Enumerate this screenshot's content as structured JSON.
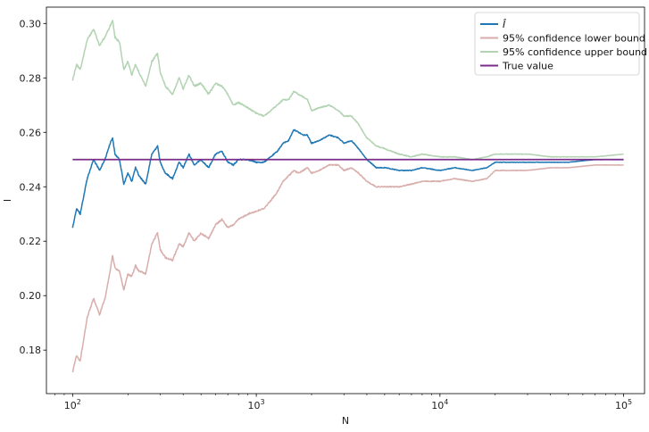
{
  "chart_data": {
    "type": "line",
    "xscale": "log",
    "xlabel": "N",
    "ylabel": "I",
    "xlim": [
      72,
      130000
    ],
    "ylim": [
      0.164,
      0.306
    ],
    "grid": false,
    "legend_position": "top-right",
    "x_ticks": [
      {
        "value": 100,
        "base": "10",
        "exp": "2"
      },
      {
        "value": 1000,
        "base": "10",
        "exp": "3"
      },
      {
        "value": 10000,
        "base": "10",
        "exp": "4"
      },
      {
        "value": 100000,
        "base": "10",
        "exp": "5"
      }
    ],
    "y_ticks": [
      {
        "value": 0.18,
        "label": "0.18"
      },
      {
        "value": 0.2,
        "label": "0.20"
      },
      {
        "value": 0.22,
        "label": "0.22"
      },
      {
        "value": 0.24,
        "label": "0.24"
      },
      {
        "value": 0.26,
        "label": "0.26"
      },
      {
        "value": 0.28,
        "label": "0.28"
      },
      {
        "value": 0.3,
        "label": "0.30"
      }
    ],
    "series": [
      {
        "name": "Î",
        "color": "#1f77b4",
        "x": [
          100,
          105,
          110,
          120,
          130,
          140,
          150,
          160,
          165,
          170,
          180,
          190,
          200,
          210,
          220,
          230,
          250,
          270,
          290,
          300,
          320,
          350,
          380,
          400,
          430,
          460,
          500,
          550,
          600,
          650,
          700,
          750,
          800,
          900,
          1000,
          1100,
          1200,
          1300,
          1400,
          1500,
          1600,
          1700,
          1800,
          1900,
          2000,
          2200,
          2500,
          2800,
          3000,
          3300,
          3600,
          4000,
          4500,
          5000,
          6000,
          7000,
          8000,
          10000,
          12000,
          15000,
          18000,
          20000,
          22000,
          25000,
          30000,
          40000,
          50000,
          70000,
          100000
        ],
        "y": [
          0.225,
          0.232,
          0.23,
          0.243,
          0.25,
          0.246,
          0.25,
          0.256,
          0.258,
          0.252,
          0.25,
          0.241,
          0.245,
          0.242,
          0.247,
          0.244,
          0.241,
          0.252,
          0.255,
          0.249,
          0.245,
          0.243,
          0.249,
          0.247,
          0.252,
          0.248,
          0.25,
          0.247,
          0.252,
          0.253,
          0.249,
          0.248,
          0.25,
          0.25,
          0.249,
          0.249,
          0.251,
          0.253,
          0.256,
          0.257,
          0.261,
          0.26,
          0.259,
          0.259,
          0.256,
          0.257,
          0.259,
          0.258,
          0.256,
          0.257,
          0.254,
          0.25,
          0.247,
          0.247,
          0.246,
          0.246,
          0.247,
          0.246,
          0.247,
          0.246,
          0.247,
          0.249,
          0.249,
          0.249,
          0.249,
          0.249,
          0.249,
          0.25,
          0.25
        ]
      },
      {
        "name": "95% confidence lower bound",
        "color": "#d8aeab",
        "x": [
          100,
          105,
          110,
          120,
          130,
          140,
          150,
          160,
          165,
          170,
          180,
          190,
          200,
          210,
          220,
          230,
          250,
          270,
          290,
          300,
          320,
          350,
          380,
          400,
          430,
          460,
          500,
          550,
          600,
          650,
          700,
          750,
          800,
          900,
          1000,
          1100,
          1200,
          1300,
          1400,
          1500,
          1600,
          1700,
          1800,
          1900,
          2000,
          2200,
          2500,
          2800,
          3000,
          3300,
          3600,
          4000,
          4500,
          5000,
          6000,
          7000,
          8000,
          10000,
          12000,
          15000,
          18000,
          20000,
          22000,
          25000,
          30000,
          40000,
          50000,
          70000,
          100000
        ],
        "y": [
          0.172,
          0.178,
          0.176,
          0.192,
          0.199,
          0.193,
          0.199,
          0.209,
          0.215,
          0.21,
          0.209,
          0.202,
          0.208,
          0.207,
          0.211,
          0.209,
          0.208,
          0.219,
          0.223,
          0.217,
          0.214,
          0.213,
          0.219,
          0.218,
          0.223,
          0.22,
          0.223,
          0.221,
          0.226,
          0.228,
          0.225,
          0.226,
          0.228,
          0.23,
          0.231,
          0.232,
          0.235,
          0.238,
          0.242,
          0.244,
          0.246,
          0.245,
          0.246,
          0.247,
          0.245,
          0.246,
          0.248,
          0.248,
          0.246,
          0.247,
          0.245,
          0.242,
          0.24,
          0.24,
          0.24,
          0.241,
          0.242,
          0.242,
          0.243,
          0.242,
          0.243,
          0.246,
          0.246,
          0.246,
          0.246,
          0.247,
          0.247,
          0.248,
          0.248
        ]
      },
      {
        "name": "95% confidence upper bound",
        "color": "#b3d3b2",
        "x": [
          100,
          105,
          110,
          120,
          130,
          140,
          150,
          160,
          165,
          170,
          180,
          190,
          200,
          210,
          220,
          230,
          250,
          270,
          290,
          300,
          320,
          350,
          380,
          400,
          430,
          460,
          500,
          550,
          600,
          650,
          700,
          750,
          800,
          900,
          1000,
          1100,
          1200,
          1300,
          1400,
          1500,
          1600,
          1700,
          1800,
          1900,
          2000,
          2200,
          2500,
          2800,
          3000,
          3300,
          3600,
          4000,
          4500,
          5000,
          6000,
          7000,
          8000,
          10000,
          12000,
          15000,
          18000,
          20000,
          22000,
          25000,
          30000,
          40000,
          50000,
          70000,
          100000
        ],
        "y": [
          0.279,
          0.285,
          0.283,
          0.294,
          0.298,
          0.292,
          0.295,
          0.299,
          0.301,
          0.295,
          0.293,
          0.283,
          0.286,
          0.281,
          0.285,
          0.282,
          0.277,
          0.286,
          0.289,
          0.282,
          0.277,
          0.274,
          0.28,
          0.276,
          0.281,
          0.277,
          0.278,
          0.274,
          0.278,
          0.277,
          0.274,
          0.27,
          0.271,
          0.269,
          0.267,
          0.266,
          0.268,
          0.27,
          0.272,
          0.272,
          0.275,
          0.274,
          0.273,
          0.272,
          0.268,
          0.269,
          0.27,
          0.268,
          0.266,
          0.266,
          0.263,
          0.258,
          0.255,
          0.254,
          0.252,
          0.251,
          0.252,
          0.251,
          0.251,
          0.25,
          0.251,
          0.252,
          0.252,
          0.252,
          0.252,
          0.251,
          0.251,
          0.251,
          0.252
        ]
      },
      {
        "name": "True value",
        "color": "#7b2d8b",
        "x": [
          100,
          100000
        ],
        "y": [
          0.25,
          0.25
        ]
      }
    ]
  }
}
